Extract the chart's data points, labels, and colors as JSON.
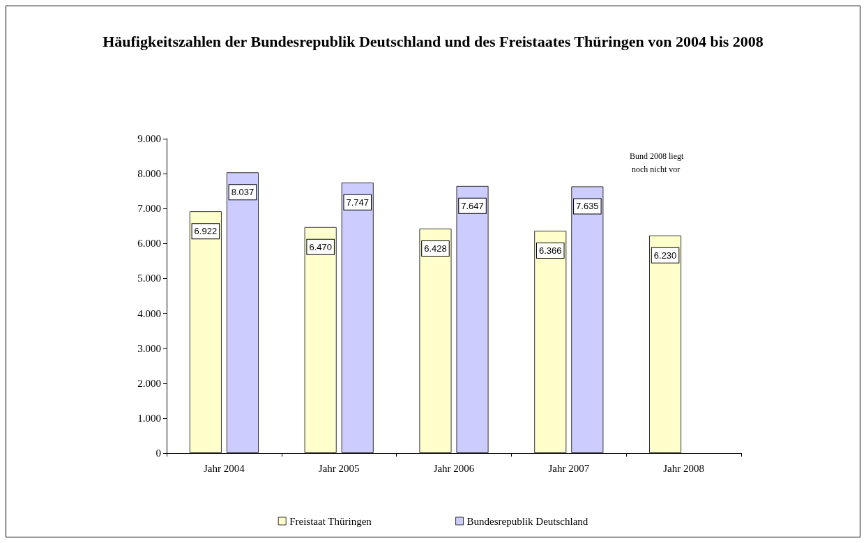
{
  "chart_data": {
    "type": "bar",
    "title": "Häufigkeitszahlen der Bundesrepublik Deutschland und des Freistaates Thüringen von 2004 bis 2008",
    "categories": [
      "Jahr 2004",
      "Jahr 2005",
      "Jahr 2006",
      "Jahr 2007",
      "Jahr 2008"
    ],
    "series": [
      {
        "name": "Freistaat Thüringen",
        "color": "#ffffcc",
        "values": [
          6922,
          6470,
          6428,
          6366,
          6230
        ],
        "value_labels": [
          "6.922",
          "6.470",
          "6.428",
          "6.366",
          "6.230"
        ]
      },
      {
        "name": "Bundesrepublik Deutschland",
        "color": "#ccccff",
        "values": [
          8037,
          7747,
          7647,
          7635,
          null
        ],
        "value_labels": [
          "8.037",
          "7.747",
          "7.647",
          "7.635",
          null
        ]
      }
    ],
    "ylim": [
      0,
      9000
    ],
    "yticks": [
      0,
      {
        "value": 1000,
        "label": "1.000"
      },
      {
        "value": 2000,
        "label": "2.000"
      },
      {
        "value": 3000,
        "label": "3.000"
      },
      {
        "value": 4000,
        "label": "4.000"
      },
      {
        "value": 5000,
        "label": "5.000"
      },
      {
        "value": 6000,
        "label": "6.000"
      },
      {
        "value": 7000,
        "label": "7.000"
      },
      {
        "value": 8000,
        "label": "8.000"
      },
      {
        "value": 9000,
        "label": "9.000"
      }
    ],
    "annotations": [
      "Bund 2008 liegt noch nicht vor"
    ],
    "grid": false,
    "legend": "bottom"
  }
}
